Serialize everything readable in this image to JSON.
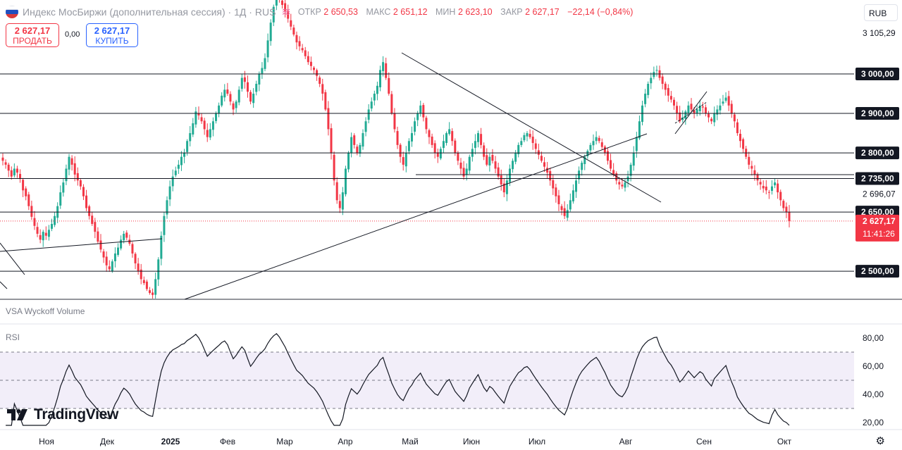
{
  "header": {
    "flag_icon": "russia-flag-icon",
    "title": "Индекс МосБиржи (дополнительная сессия)",
    "interval": "1Д",
    "exchange": "RUS",
    "ohlc": {
      "open_label": "ОТКР",
      "open": "2 650,53",
      "high_label": "МАКС",
      "high": "2 651,12",
      "low_label": "МИН",
      "low": "2 623,10",
      "close_label": "ЗАКР",
      "close": "2 627,17",
      "change": "−22,14 (−0,84%)"
    }
  },
  "trade": {
    "sell_price": "2 627,17",
    "sell_label": "ПРОДАТЬ",
    "spread": "0,00",
    "buy_price": "2 627,17",
    "buy_label": "КУПИТЬ"
  },
  "currency": "RUB",
  "price_axis": {
    "top_label": "3 105,29",
    "marked_levels": [
      "3 000,00",
      "2 900,00",
      "2 800,00",
      "2 735,00",
      "2 650,00",
      "2 500,00"
    ],
    "plain_label": "2 696,07",
    "last_price": "2 627,17",
    "countdown": "11:41:26"
  },
  "rsi_axis": [
    "80,00",
    "60,00",
    "40,00",
    "20,00"
  ],
  "indicators": {
    "volume": "VSA Wyckoff Volume",
    "rsi": "RSI"
  },
  "time_axis": [
    "Ноя",
    "Дек",
    "2025",
    "Фев",
    "Мар",
    "Апр",
    "Май",
    "Июн",
    "Июл",
    "Авг",
    "Сен",
    "Окт"
  ],
  "watermark": "TradingView",
  "colors": {
    "up": "#22ab94",
    "down": "#f23645",
    "rsi_band": "#7e57c2",
    "accent": "#2962ff"
  },
  "chart_data": {
    "type": "candlestick",
    "ylim": [
      2432,
      3105.29
    ],
    "levels": [
      3000,
      2900,
      2800,
      2735,
      2650,
      2500
    ],
    "last_close": 2627.17,
    "rsi_ylim": [
      18,
      84
    ],
    "rsi_bands": [
      70,
      50,
      30
    ],
    "closes": [
      2780,
      2770,
      2755,
      2740,
      2760,
      2750,
      2735,
      2705,
      2690,
      2665,
      2638,
      2615,
      2595,
      2580,
      2600,
      2590,
      2605,
      2620,
      2640,
      2665,
      2700,
      2725,
      2760,
      2790,
      2770,
      2745,
      2730,
      2715,
      2690,
      2660,
      2640,
      2620,
      2600,
      2575,
      2555,
      2535,
      2515,
      2505,
      2525,
      2545,
      2560,
      2580,
      2595,
      2585,
      2570,
      2545,
      2520,
      2500,
      2480,
      2470,
      2455,
      2445,
      2440,
      2480,
      2530,
      2590,
      2640,
      2680,
      2715,
      2740,
      2755,
      2770,
      2790,
      2800,
      2830,
      2850,
      2875,
      2905,
      2895,
      2880,
      2860,
      2840,
      2860,
      2880,
      2900,
      2920,
      2945,
      2960,
      2950,
      2930,
      2910,
      2930,
      2960,
      2990,
      2980,
      2955,
      2930,
      2950,
      2975,
      3000,
      3015,
      3040,
      3085,
      3130,
      3170,
      3200,
      3190,
      3175,
      3160,
      3140,
      3120,
      3100,
      3080,
      3070,
      3060,
      3045,
      3030,
      3020,
      3010,
      2995,
      2975,
      2950,
      2910,
      2860,
      2800,
      2730,
      2680,
      2660,
      2700,
      2760,
      2800,
      2840,
      2820,
      2800,
      2820,
      2850,
      2880,
      2910,
      2930,
      2950,
      2970,
      3010,
      3030,
      2990,
      2950,
      2900,
      2860,
      2820,
      2790,
      2770,
      2800,
      2830,
      2850,
      2880,
      2900,
      2920,
      2890,
      2860,
      2840,
      2820,
      2800,
      2790,
      2810,
      2830,
      2850,
      2860,
      2830,
      2800,
      2780,
      2760,
      2740,
      2760,
      2790,
      2810,
      2830,
      2850,
      2820,
      2790,
      2770,
      2790,
      2780,
      2760,
      2740,
      2720,
      2700,
      2730,
      2760,
      2780,
      2800,
      2820,
      2830,
      2845,
      2850,
      2840,
      2825,
      2810,
      2795,
      2780,
      2765,
      2750,
      2730,
      2710,
      2690,
      2670,
      2655,
      2640,
      2655,
      2680,
      2705,
      2730,
      2755,
      2775,
      2790,
      2805,
      2820,
      2830,
      2840,
      2830,
      2815,
      2800,
      2780,
      2760,
      2745,
      2730,
      2720,
      2715,
      2725,
      2740,
      2770,
      2800,
      2840,
      2880,
      2920,
      2950,
      2975,
      2990,
      3005,
      3010,
      2990,
      2975,
      2960,
      2945,
      2935,
      2920,
      2900,
      2880,
      2890,
      2905,
      2920,
      2910,
      2900,
      2910,
      2920,
      2915,
      2900,
      2890,
      2880,
      2900,
      2910,
      2920,
      2930,
      2940,
      2920,
      2900,
      2880,
      2850,
      2830,
      2810,
      2790,
      2770,
      2760,
      2745,
      2730,
      2720,
      2710,
      2705,
      2700,
      2715,
      2725,
      2700,
      2680,
      2660,
      2650,
      2627
    ]
  }
}
